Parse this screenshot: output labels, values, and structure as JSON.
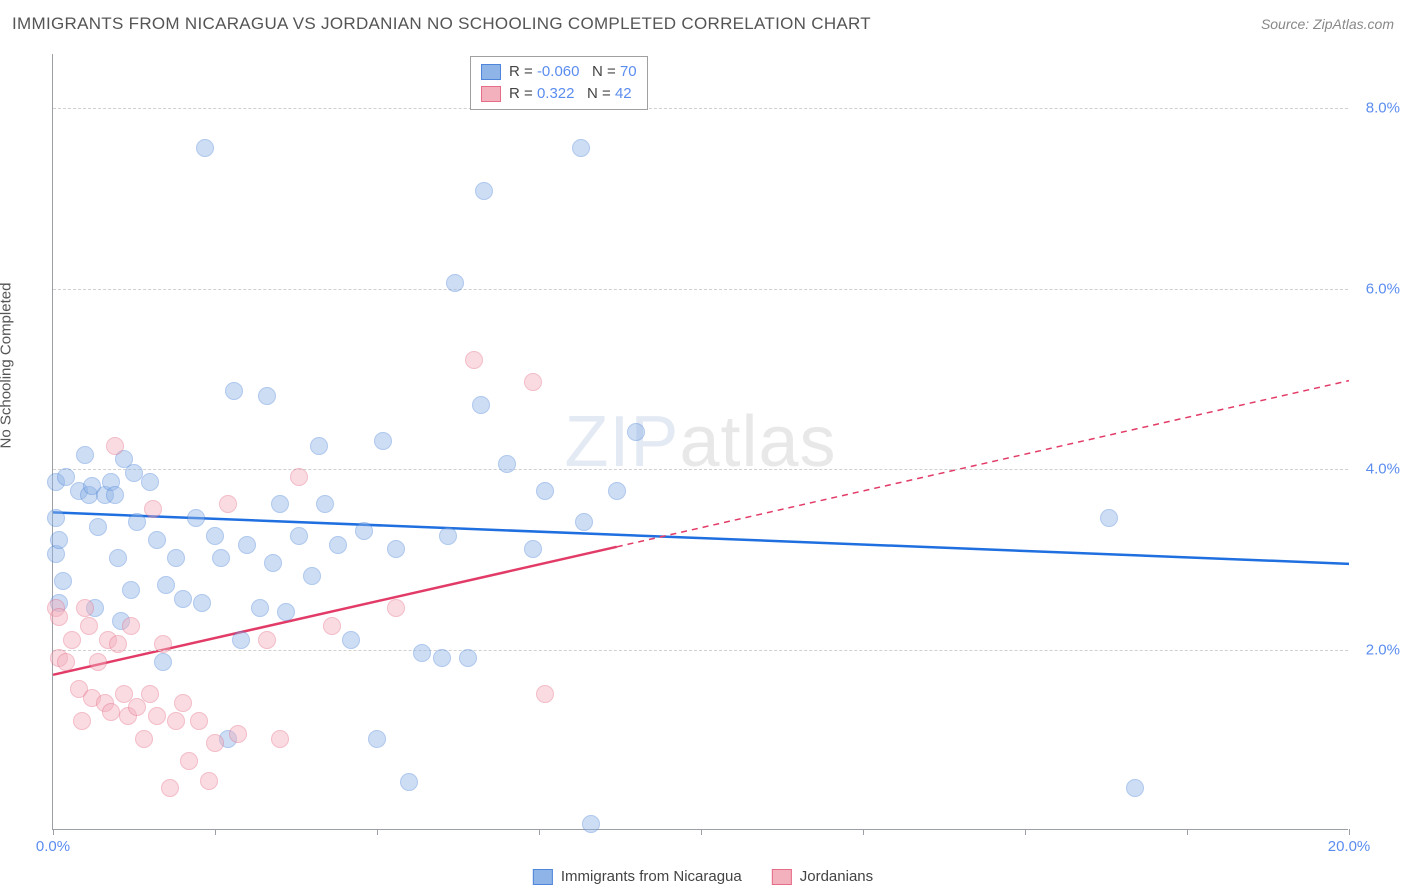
{
  "title": "IMMIGRANTS FROM NICARAGUA VS JORDANIAN NO SCHOOLING COMPLETED CORRELATION CHART",
  "source": "Source: ZipAtlas.com",
  "y_axis_label": "No Schooling Completed",
  "watermark_a": "ZIP",
  "watermark_b": "atlas",
  "chart": {
    "type": "scatter",
    "background_color": "#ffffff",
    "grid_color": "#d0d0d0",
    "axis_color": "#9aa0a6",
    "xlim": [
      0,
      20
    ],
    "ylim": [
      0,
      8.6
    ],
    "x_ticks": [
      0,
      2.5,
      5,
      7.5,
      10,
      12.5,
      15,
      17.5,
      20
    ],
    "x_tick_labels": {
      "0": "0.0%",
      "20": "20.0%"
    },
    "y_ticks": [
      2,
      4,
      6,
      8
    ],
    "y_tick_labels": {
      "2": "2.0%",
      "4": "4.0%",
      "6": "6.0%",
      "8": "8.0%"
    },
    "marker_radius": 9,
    "marker_opacity": 0.45,
    "series": [
      {
        "name": "Immigrants from Nicaragua",
        "fill_color": "#8fb4e8",
        "stroke_color": "#4f86d9",
        "line_color": "#1f6fe0",
        "trend": {
          "x0": 0,
          "y0": 3.52,
          "x1": 20,
          "y1": 2.95,
          "solid_until_x": 20
        },
        "R": "-0.060",
        "N": "70",
        "points": [
          [
            0.05,
            3.15
          ],
          [
            0.05,
            3.55
          ],
          [
            0.05,
            3.95
          ],
          [
            0.1,
            2.6
          ],
          [
            0.1,
            3.3
          ],
          [
            0.15,
            2.85
          ],
          [
            0.2,
            4.0
          ],
          [
            0.4,
            3.85
          ],
          [
            0.5,
            4.25
          ],
          [
            0.55,
            3.8
          ],
          [
            0.6,
            3.9
          ],
          [
            0.65,
            2.55
          ],
          [
            0.7,
            3.45
          ],
          [
            0.8,
            3.8
          ],
          [
            0.9,
            3.95
          ],
          [
            0.95,
            3.8
          ],
          [
            1.0,
            3.1
          ],
          [
            1.05,
            2.4
          ],
          [
            1.1,
            4.2
          ],
          [
            1.2,
            2.75
          ],
          [
            1.25,
            4.05
          ],
          [
            1.3,
            3.5
          ],
          [
            1.5,
            3.95
          ],
          [
            1.6,
            3.3
          ],
          [
            1.7,
            1.95
          ],
          [
            1.75,
            2.8
          ],
          [
            1.9,
            3.1
          ],
          [
            2.0,
            2.65
          ],
          [
            2.2,
            3.55
          ],
          [
            2.3,
            2.6
          ],
          [
            2.35,
            7.65
          ],
          [
            2.5,
            3.35
          ],
          [
            2.6,
            3.1
          ],
          [
            2.7,
            1.1
          ],
          [
            2.8,
            4.95
          ],
          [
            2.9,
            2.2
          ],
          [
            3.0,
            3.25
          ],
          [
            3.2,
            2.55
          ],
          [
            3.3,
            4.9
          ],
          [
            3.4,
            3.05
          ],
          [
            3.5,
            3.7
          ],
          [
            3.6,
            2.5
          ],
          [
            3.8,
            3.35
          ],
          [
            4.0,
            2.9
          ],
          [
            4.1,
            4.35
          ],
          [
            4.2,
            3.7
          ],
          [
            4.4,
            3.25
          ],
          [
            4.6,
            2.2
          ],
          [
            4.8,
            3.4
          ],
          [
            5.0,
            1.1
          ],
          [
            5.1,
            4.4
          ],
          [
            5.3,
            3.2
          ],
          [
            5.5,
            0.62
          ],
          [
            5.7,
            2.05
          ],
          [
            6.0,
            2.0
          ],
          [
            6.1,
            3.35
          ],
          [
            6.2,
            6.15
          ],
          [
            6.4,
            2.0
          ],
          [
            6.6,
            4.8
          ],
          [
            6.65,
            7.17
          ],
          [
            7.0,
            4.15
          ],
          [
            7.4,
            3.2
          ],
          [
            7.6,
            3.85
          ],
          [
            8.15,
            7.65
          ],
          [
            8.2,
            3.5
          ],
          [
            8.3,
            0.15
          ],
          [
            8.7,
            3.85
          ],
          [
            16.3,
            3.55
          ],
          [
            16.7,
            0.55
          ],
          [
            9.0,
            4.5
          ]
        ]
      },
      {
        "name": "Jordanians",
        "fill_color": "#f3b0bd",
        "stroke_color": "#e56d87",
        "line_color": "#e23b67",
        "trend": {
          "x0": 0,
          "y0": 1.72,
          "x1": 20,
          "y1": 4.98,
          "solid_until_x": 8.7
        },
        "R": "0.322",
        "N": "42",
        "points": [
          [
            0.05,
            2.55
          ],
          [
            0.1,
            2.0
          ],
          [
            0.1,
            2.45
          ],
          [
            0.2,
            1.95
          ],
          [
            0.3,
            2.2
          ],
          [
            0.4,
            1.65
          ],
          [
            0.45,
            1.3
          ],
          [
            0.5,
            2.55
          ],
          [
            0.55,
            2.35
          ],
          [
            0.6,
            1.55
          ],
          [
            0.7,
            1.95
          ],
          [
            0.8,
            1.5
          ],
          [
            0.85,
            2.2
          ],
          [
            0.9,
            1.4
          ],
          [
            0.95,
            4.35
          ],
          [
            1.0,
            2.15
          ],
          [
            1.1,
            1.6
          ],
          [
            1.15,
            1.35
          ],
          [
            1.2,
            2.35
          ],
          [
            1.3,
            1.45
          ],
          [
            1.4,
            1.1
          ],
          [
            1.5,
            1.6
          ],
          [
            1.55,
            3.65
          ],
          [
            1.6,
            1.35
          ],
          [
            1.7,
            2.15
          ],
          [
            1.8,
            0.55
          ],
          [
            1.9,
            1.3
          ],
          [
            2.0,
            1.5
          ],
          [
            2.1,
            0.85
          ],
          [
            2.25,
            1.3
          ],
          [
            2.4,
            0.63
          ],
          [
            2.5,
            1.05
          ],
          [
            2.7,
            3.7
          ],
          [
            2.85,
            1.15
          ],
          [
            3.3,
            2.2
          ],
          [
            3.5,
            1.1
          ],
          [
            3.8,
            4.0
          ],
          [
            4.3,
            2.35
          ],
          [
            5.3,
            2.55
          ],
          [
            6.5,
            5.3
          ],
          [
            7.4,
            5.05
          ],
          [
            7.6,
            1.6
          ]
        ]
      }
    ],
    "legend_box": {
      "R_label": "R = ",
      "N_label": "N = "
    }
  }
}
